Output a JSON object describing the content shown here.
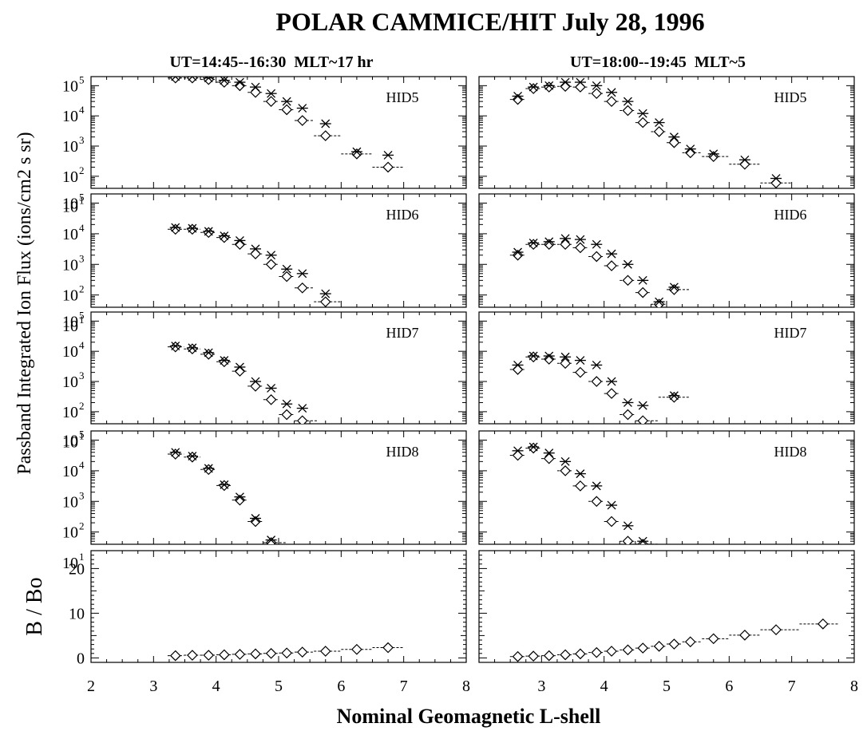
{
  "chart_data": {
    "type": "scatter",
    "title": "POLAR CAMMICE/HIT July 28, 1996",
    "xlabel": "Nominal Geomagnetic L-shell",
    "ylabel_flux": "Passband Integrated Ion Flux (ions/cm2 s sr)",
    "ylabel_b": "B / Bo",
    "xlim": [
      2,
      8
    ],
    "x_ticks": [
      "2",
      "3",
      "4",
      "5",
      "6",
      "7",
      "8"
    ],
    "flux_ylim_log10": [
      1.6,
      5.3
    ],
    "b_ylim": [
      -1,
      24
    ],
    "b_ticks": [
      "0",
      "10",
      "20"
    ],
    "markers": {
      "asterisk": "*",
      "diamond": "◇"
    },
    "columns": [
      {
        "subtitle": "UT=14:45--16:30  MLT~17 hr",
        "panels": [
          {
            "label": "HID5",
            "x": [
              3.35,
              3.62,
              3.88,
              4.13,
              4.38,
              4.63,
              4.88,
              5.13,
              5.38,
              5.75,
              6.25,
              6.75
            ],
            "asterisk": [
              200000,
              200000,
              180000,
              150000,
              130000,
              90000,
              55000,
              30000,
              18000,
              5500,
              650,
              500
            ],
            "diamond": [
              180000,
              180000,
              160000,
              130000,
              100000,
              60000,
              30000,
              16000,
              7000,
              2200,
              550,
              200
            ]
          },
          {
            "label": "HID6",
            "x": [
              3.35,
              3.62,
              3.88,
              4.13,
              4.38,
              4.63,
              4.88,
              5.13,
              5.38,
              5.75
            ],
            "asterisk": [
              16000,
              15000,
              12000,
              8500,
              6000,
              3200,
              2000,
              700,
              500,
              110
            ],
            "diamond": [
              14000,
              14000,
              11000,
              7500,
              4500,
              2200,
              1000,
              400,
              170,
              60
            ]
          },
          {
            "label": "HID7",
            "x": [
              3.35,
              3.62,
              3.88,
              4.13,
              4.38,
              4.63,
              4.88,
              5.13,
              5.38
            ],
            "asterisk": [
              15000,
              13000,
              9000,
              5000,
              3000,
              1000,
              600,
              180,
              130
            ],
            "diamond": [
              14000,
              12000,
              8000,
              4500,
              2200,
              700,
              250,
              80,
              50
            ]
          },
          {
            "label": "HID8",
            "x": [
              3.35,
              3.62,
              3.88,
              4.13,
              4.38,
              4.63,
              4.88
            ],
            "asterisk": [
              40000,
              30000,
              12000,
              3500,
              1400,
              280,
              55
            ],
            "diamond": [
              35000,
              28000,
              11000,
              3300,
              1100,
              220,
              45
            ]
          },
          {
            "label": "",
            "x": [
              3.35,
              3.62,
              3.88,
              4.13,
              4.38,
              4.63,
              4.88,
              5.13,
              5.38,
              5.75,
              6.25,
              6.75
            ],
            "asterisk": [],
            "diamond": [
              0.5,
              0.6,
              0.6,
              0.7,
              0.8,
              0.9,
              1.0,
              1.1,
              1.3,
              1.5,
              1.9,
              2.3
            ]
          }
        ]
      },
      {
        "subtitle": "UT=18:00--19:45  MLT~5",
        "panels": [
          {
            "label": "HID5",
            "x": [
              2.62,
              2.87,
              3.12,
              3.38,
              3.62,
              3.88,
              4.12,
              4.38,
              4.62,
              4.88,
              5.12,
              5.38,
              5.75,
              6.25,
              6.75
            ],
            "asterisk": [
              45000,
              90000,
              100000,
              130000,
              130000,
              100000,
              60000,
              30000,
              12000,
              6000,
              2000,
              800,
              550,
              350,
              85
            ],
            "diamond": [
              35000,
              80000,
              90000,
              95000,
              90000,
              55000,
              30000,
              15000,
              6000,
              3000,
              1300,
              600,
              450,
              250,
              60
            ]
          },
          {
            "label": "HID6",
            "x": [
              2.62,
              2.87,
              3.12,
              3.38,
              3.62,
              3.88,
              4.12,
              4.38,
              4.62,
              4.88,
              5.12
            ],
            "asterisk": [
              2500,
              5000,
              5500,
              7000,
              6500,
              4500,
              2200,
              1000,
              300,
              60,
              180
            ],
            "diamond": [
              2000,
              4500,
              4500,
              4500,
              3500,
              1800,
              900,
              300,
              120,
              50,
              150
            ]
          },
          {
            "label": "HID7",
            "x": [
              2.62,
              2.87,
              3.12,
              3.38,
              3.62,
              3.88,
              4.12,
              4.38,
              4.62,
              5.12
            ],
            "asterisk": [
              3500,
              7000,
              7000,
              6500,
              5000,
              3500,
              1000,
              200,
              160,
              340
            ],
            "diamond": [
              2500,
              6500,
              5500,
              4000,
              2000,
              1000,
              400,
              80,
              50,
              300
            ]
          },
          {
            "label": "HID8",
            "x": [
              2.62,
              2.87,
              3.12,
              3.38,
              3.62,
              3.88,
              4.12,
              4.38,
              4.62
            ],
            "asterisk": [
              45000,
              60000,
              38000,
              20000,
              8000,
              3200,
              750,
              160,
              50
            ],
            "diamond": [
              32000,
              55000,
              25000,
              10000,
              3200,
              1000,
              220,
              50,
              40
            ]
          },
          {
            "label": "",
            "x": [
              2.62,
              2.87,
              3.12,
              3.38,
              3.62,
              3.88,
              4.12,
              4.38,
              4.62,
              4.88,
              5.12,
              5.38,
              5.75,
              6.25,
              6.75,
              7.5
            ],
            "asterisk": [],
            "diamond": [
              0.3,
              0.4,
              0.5,
              0.7,
              0.9,
              1.2,
              1.5,
              1.8,
              2.2,
              2.6,
              3.1,
              3.6,
              4.3,
              5.1,
              6.3,
              7.6
            ]
          }
        ]
      }
    ]
  }
}
